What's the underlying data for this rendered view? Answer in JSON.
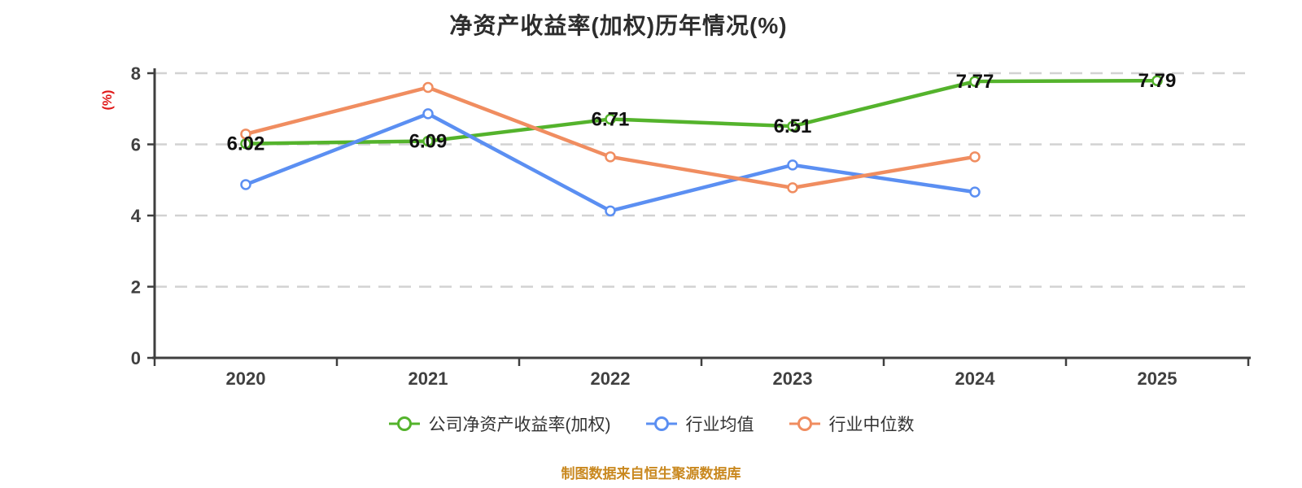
{
  "source_note": "制图数据来自恒生聚源数据库",
  "chart_data": {
    "type": "line",
    "title": "净资产收益率(加权)历年情况(%)",
    "xlabel": "",
    "ylabel": "(%)",
    "categories": [
      "2020",
      "2021",
      "2022",
      "2023",
      "2024",
      "2025"
    ],
    "ylim": [
      0,
      8
    ],
    "yticks": [
      0,
      2,
      4,
      6,
      8
    ],
    "grid": "horizontal-dashed",
    "legend_position": "bottom",
    "series": [
      {
        "name": "公司净资产收益率(加权)",
        "color": "#54b32c",
        "values": [
          6.02,
          6.09,
          6.71,
          6.51,
          7.77,
          7.79
        ],
        "point_labels": [
          "6.02",
          "6.09",
          "6.71",
          "6.51",
          "7.77",
          "7.79"
        ]
      },
      {
        "name": "行业均值",
        "color": "#5b8ff2",
        "values": [
          4.87,
          6.86,
          4.13,
          5.42,
          4.66,
          null
        ],
        "point_labels": null
      },
      {
        "name": "行业中位数",
        "color": "#f08d60",
        "values": [
          6.29,
          7.6,
          5.65,
          4.78,
          5.65,
          null
        ],
        "point_labels": null
      }
    ],
    "style": {
      "background": "#ffffff",
      "axis_color": "#3f3f3f",
      "grid_color": "#d2d2d2",
      "tick_color": "#404040",
      "data_label_color": "#111111",
      "title_color": "#2d2d2d",
      "ylabel_color": "#e01616",
      "legend_text_color": "#333333",
      "source_color": "#c9881f",
      "marker_fill": "#ffffff"
    }
  }
}
